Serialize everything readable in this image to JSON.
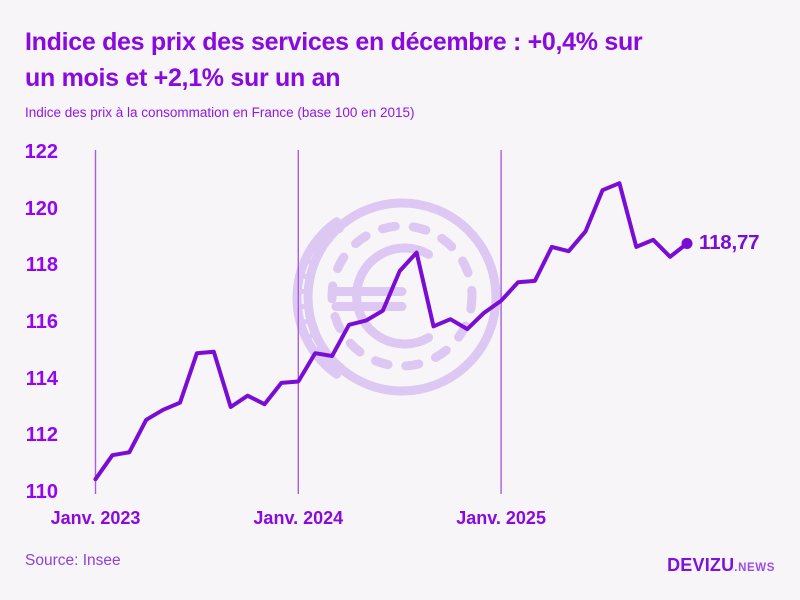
{
  "header": {
    "title_line1": "Indice des prix des services en décembre : +0,4% sur",
    "title_line2": "un mois et +2,1% sur un an",
    "subtitle": "Indice des prix à la consommation en France (base 100 en 2015)"
  },
  "chart_data": {
    "type": "line",
    "title": "Indice des prix des services en décembre : +0,4% sur un mois et +2,1% sur un an",
    "subtitle": "Indice des prix à la consommation en France (base 100 en 2015)",
    "series_name": "Indice des prix des services (France, base 100 en 2015)",
    "x": [
      "janv. 2023",
      "févr. 2023",
      "mars 2023",
      "avr. 2023",
      "mai 2023",
      "juin 2023",
      "juil. 2023",
      "août 2023",
      "sept. 2023",
      "oct. 2023",
      "nov. 2023",
      "déc. 2023",
      "janv. 2024",
      "févr. 2024",
      "mars 2024",
      "avr. 2024",
      "mai 2024",
      "juin 2024",
      "juil. 2024",
      "août 2024",
      "sept. 2024",
      "oct. 2024",
      "nov. 2024",
      "déc. 2024",
      "janv. 2025",
      "févr. 2025",
      "mars 2025",
      "avr. 2025",
      "mai 2025",
      "juin 2025",
      "juil. 2025",
      "août 2025",
      "sept. 2025",
      "oct. 2025",
      "nov. 2025",
      "déc. 2025"
    ],
    "values": [
      110.45,
      111.3,
      111.4,
      112.55,
      112.9,
      113.15,
      114.9,
      114.95,
      113.0,
      113.4,
      113.1,
      113.85,
      113.9,
      114.9,
      114.8,
      115.9,
      116.05,
      116.4,
      117.8,
      118.45,
      115.85,
      116.1,
      115.75,
      116.33,
      116.75,
      117.4,
      117.45,
      118.65,
      118.5,
      119.2,
      120.65,
      120.9,
      118.65,
      118.9,
      118.3,
      118.77
    ],
    "ylim": [
      110,
      122
    ],
    "y_ticks": [
      122,
      120,
      118,
      116,
      114,
      112,
      110
    ],
    "x_tick_labels": [
      "Janv. 2023",
      "Janv. 2024",
      "Janv. 2025"
    ],
    "x_tick_positions": [
      0,
      12,
      24
    ],
    "grid": "vertical-gridlines-only",
    "legend": false,
    "end_label": "118,77",
    "last_point": {
      "x": "déc. 2025",
      "value": 118.77
    }
  },
  "footer": {
    "source": "Source: Insee"
  },
  "logo": {
    "name": "DEVIZU",
    "suffix": ".NEWS"
  },
  "watermark": "euro-coin",
  "colors": {
    "bg": "#f7f5f8",
    "title": "#8a0ade",
    "subtitle": "#9018e2",
    "axis": "#9406f0",
    "grid": "#a75fe2",
    "line": "#7a0cd4",
    "watermark": "#dcc8f3",
    "source": "#9040d8",
    "logo-main": "#7d12de",
    "logo-suffix": "#9b4fe6"
  }
}
